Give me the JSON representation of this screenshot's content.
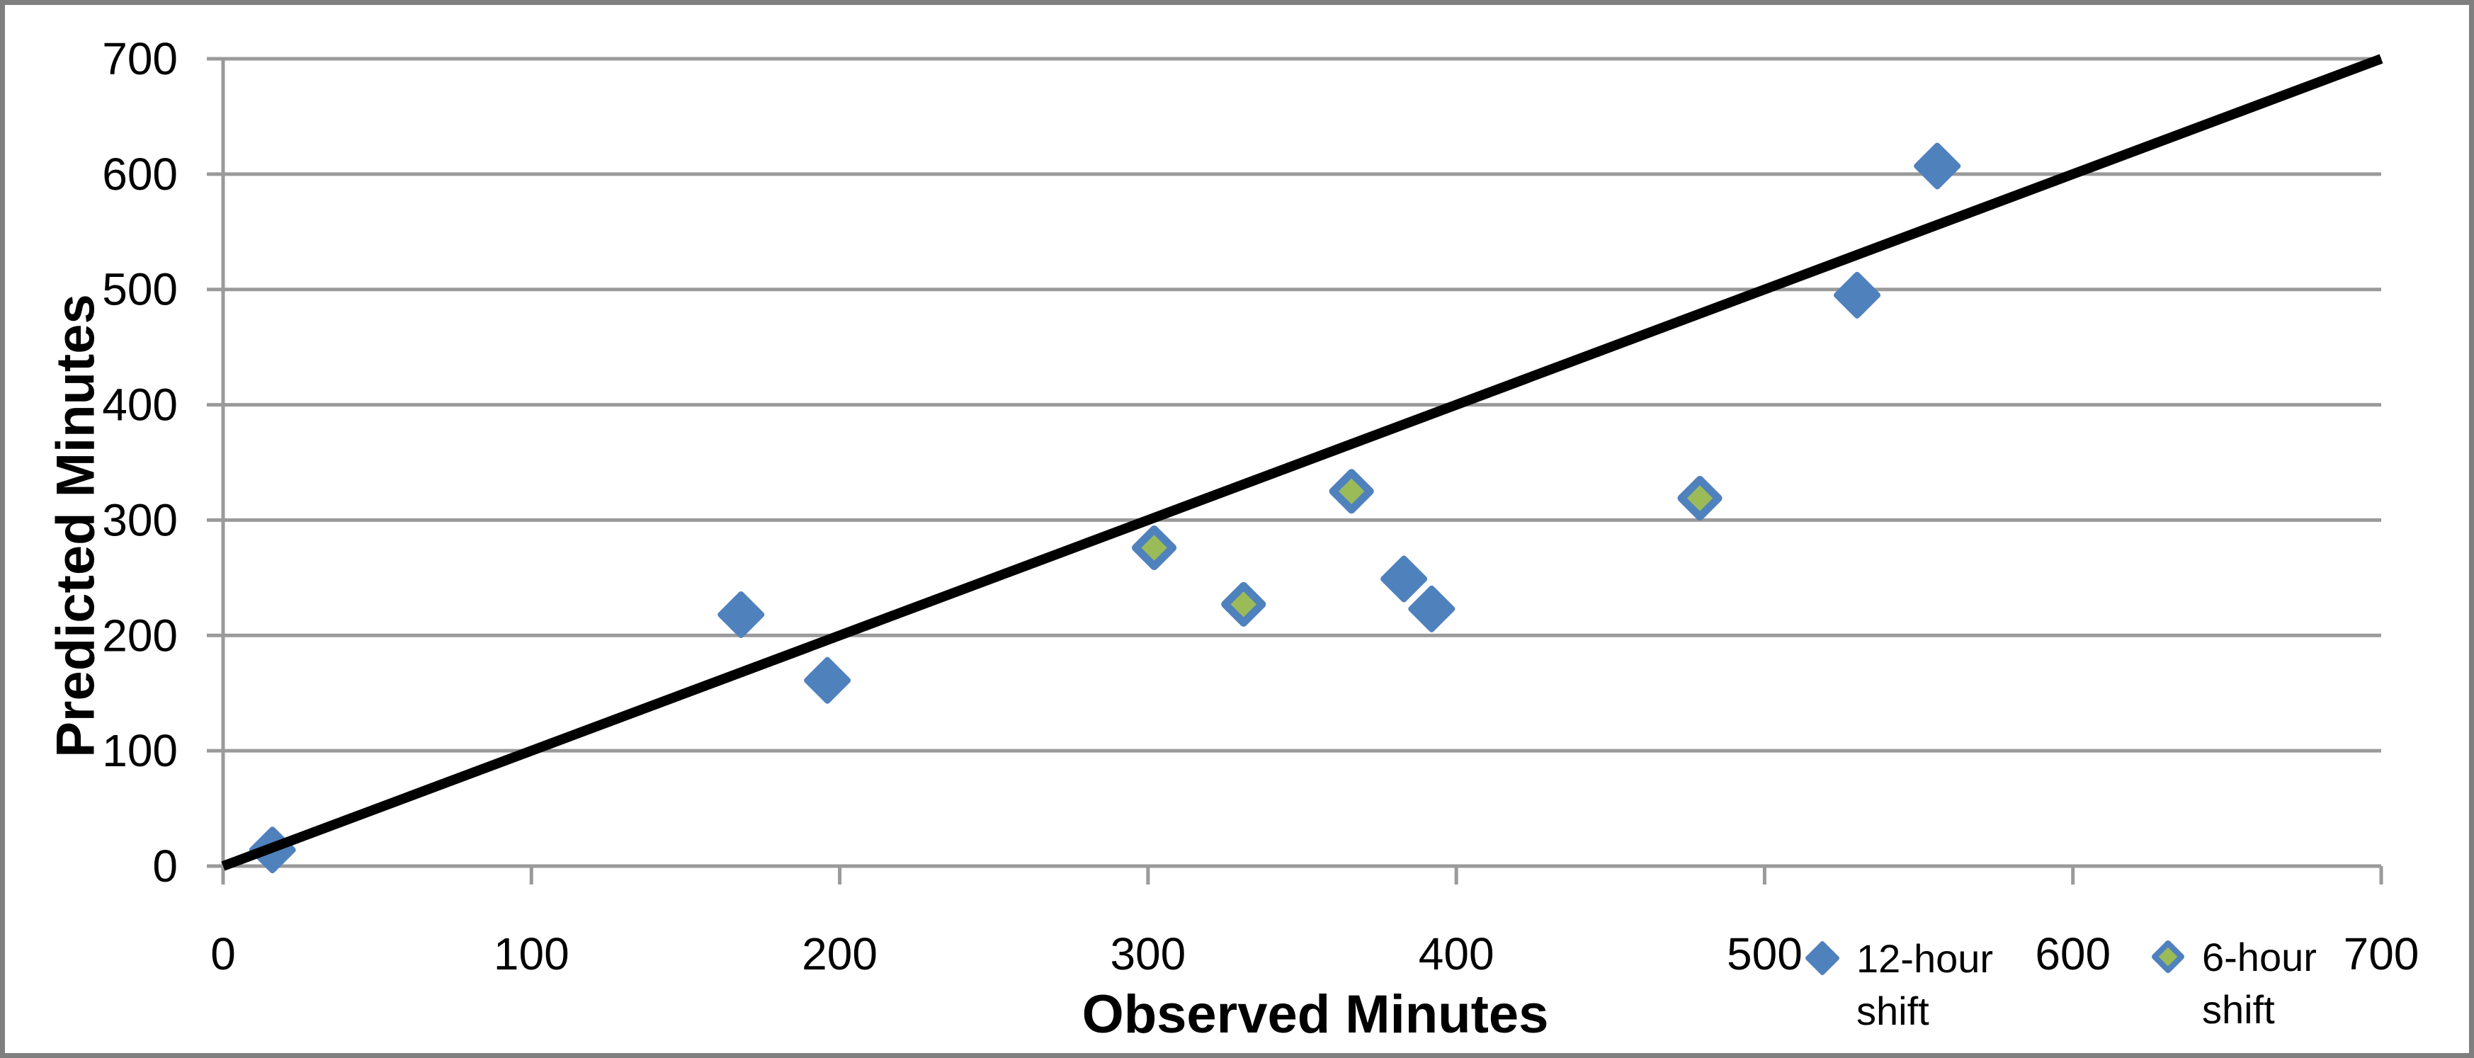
{
  "chart_data": {
    "type": "scatter",
    "title": "",
    "xlabel": "Observed Minutes",
    "ylabel": "Predicted Minutes",
    "xlim": [
      0,
      700
    ],
    "ylim": [
      0,
      700
    ],
    "x_ticks": [
      0,
      100,
      200,
      300,
      400,
      500,
      600,
      700
    ],
    "y_ticks": [
      0,
      100,
      200,
      300,
      400,
      500,
      600,
      700
    ],
    "grid": "horizontal-only",
    "legend_position": "bottom-right-overlapping-x-axis",
    "series": [
      {
        "name": "12-hour shift",
        "marker": "diamond",
        "fill_color": "#4F81BD",
        "border_color": "#4F81BD",
        "points": [
          [
            16,
            14
          ],
          [
            168,
            218
          ],
          [
            196,
            161
          ],
          [
            383,
            249
          ],
          [
            392,
            223
          ],
          [
            530,
            495
          ],
          [
            556,
            607
          ]
        ]
      },
      {
        "name": "6-hour shift",
        "marker": "diamond",
        "fill_color": "#9BBB59",
        "border_color": "#4F81BD",
        "points": [
          [
            302,
            276
          ],
          [
            331,
            227
          ],
          [
            366,
            325
          ],
          [
            479,
            319
          ]
        ]
      }
    ],
    "reference_line": {
      "description": "identity line y = x",
      "from": [
        0,
        0
      ],
      "to": [
        700,
        700
      ],
      "color": "#000000"
    }
  },
  "colors": {
    "gridline": "#9a9a9a",
    "axis_line": "#9a9a9a",
    "chart_border": "#7f7f7f",
    "background": "#ffffff",
    "text": "#000000"
  }
}
